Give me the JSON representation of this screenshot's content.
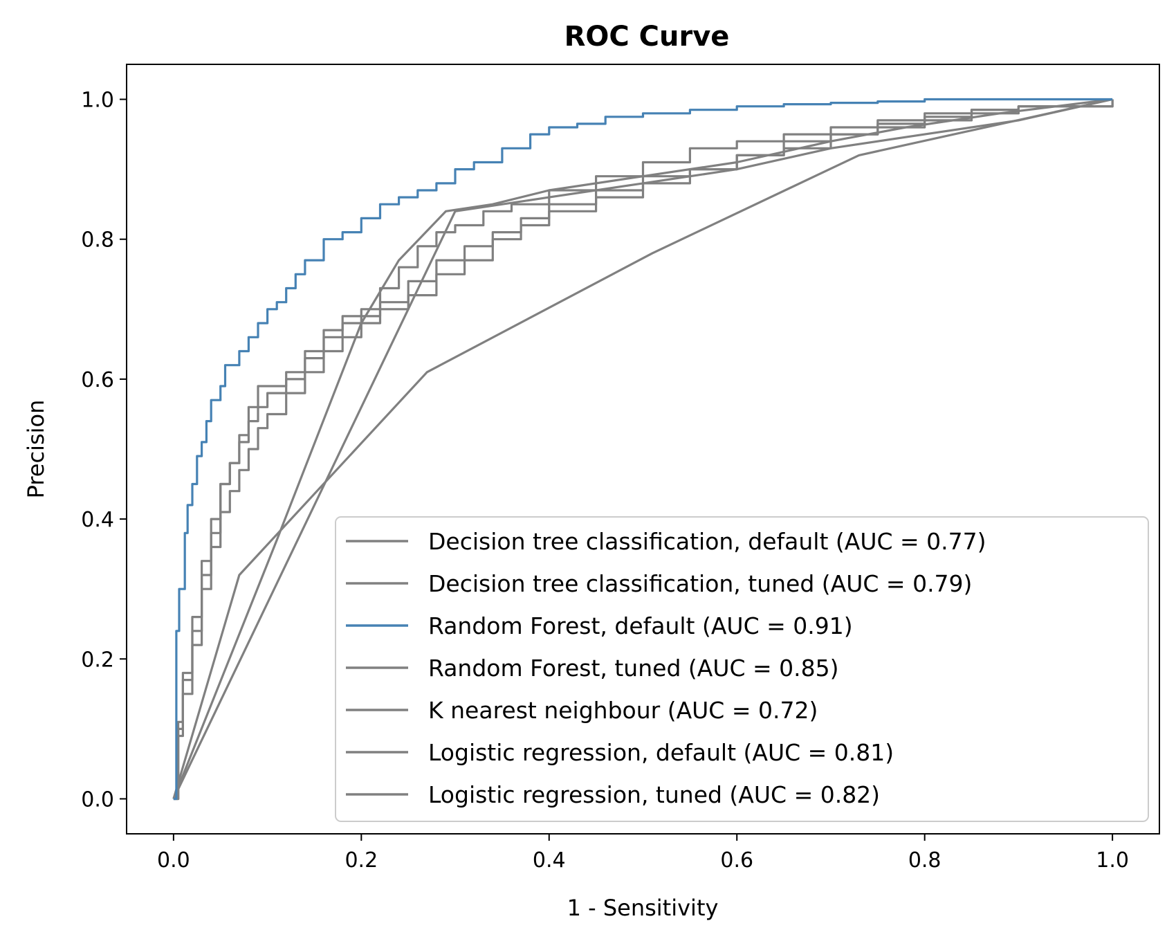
{
  "chart_data": {
    "type": "line",
    "title": "ROC Curve",
    "xlabel": "1 - Sensitivity",
    "ylabel": "Precision",
    "xlim": [
      -0.05,
      1.05
    ],
    "ylim": [
      -0.05,
      1.05
    ],
    "xticks": [
      "0.0",
      "0.2",
      "0.4",
      "0.6",
      "0.8",
      "1.0"
    ],
    "yticks": [
      "0.0",
      "0.2",
      "0.4",
      "0.6",
      "0.8",
      "1.0"
    ],
    "grid": false,
    "legend_position": "bottom-right",
    "colors": {
      "grey": "#808080",
      "blue": "#4682b4"
    },
    "series": [
      {
        "name": "Decision tree classification, default (AUC = 0.77)",
        "color": "#808080",
        "step": false,
        "x": [
          0,
          0.07,
          0.27,
          0.51,
          0.73,
          1.0
        ],
        "y": [
          0,
          0.32,
          0.61,
          0.78,
          0.92,
          1.0
        ]
      },
      {
        "name": "Decision tree classification, tuned (AUC = 0.79)",
        "color": "#808080",
        "step": false,
        "x": [
          0,
          0.11,
          0.2,
          0.24,
          0.29,
          0.34,
          0.4,
          0.5,
          0.6,
          0.7,
          0.78,
          0.88,
          1.0
        ],
        "y": [
          0,
          0.37,
          0.68,
          0.77,
          0.84,
          0.85,
          0.87,
          0.89,
          0.91,
          0.94,
          0.96,
          0.98,
          1.0
        ]
      },
      {
        "name": "Random Forest, default (AUC = 0.91)",
        "color": "#4682b4",
        "step": true,
        "x": [
          0,
          0.003,
          0.006,
          0.012,
          0.015,
          0.02,
          0.025,
          0.03,
          0.035,
          0.04,
          0.05,
          0.055,
          0.07,
          0.08,
          0.09,
          0.1,
          0.11,
          0.12,
          0.13,
          0.14,
          0.16,
          0.18,
          0.2,
          0.22,
          0.24,
          0.26,
          0.28,
          0.3,
          0.32,
          0.35,
          0.38,
          0.4,
          0.43,
          0.46,
          0.5,
          0.55,
          0.6,
          0.65,
          0.7,
          0.75,
          0.8,
          0.9,
          1.0
        ],
        "y": [
          0,
          0.24,
          0.3,
          0.38,
          0.42,
          0.45,
          0.49,
          0.51,
          0.54,
          0.57,
          0.59,
          0.62,
          0.64,
          0.66,
          0.68,
          0.7,
          0.71,
          0.73,
          0.75,
          0.77,
          0.8,
          0.81,
          0.83,
          0.85,
          0.86,
          0.87,
          0.88,
          0.9,
          0.91,
          0.93,
          0.95,
          0.96,
          0.965,
          0.975,
          0.98,
          0.985,
          0.99,
          0.993,
          0.995,
          0.997,
          1.0,
          1.0,
          1.0
        ]
      },
      {
        "name": "Random Forest, tuned (AUC = 0.85)",
        "color": "#808080",
        "step": true,
        "x": [
          0,
          0.005,
          0.01,
          0.02,
          0.03,
          0.04,
          0.05,
          0.06,
          0.07,
          0.08,
          0.09,
          0.1,
          0.12,
          0.14,
          0.16,
          0.18,
          0.2,
          0.22,
          0.24,
          0.26,
          0.28,
          0.3,
          0.33,
          0.36,
          0.4,
          0.45,
          0.5,
          0.55,
          0.6,
          0.65,
          0.7,
          0.75,
          0.8,
          0.85,
          0.9,
          1.0
        ],
        "y": [
          0,
          0.1,
          0.17,
          0.24,
          0.32,
          0.38,
          0.45,
          0.48,
          0.52,
          0.56,
          0.59,
          0.59,
          0.61,
          0.64,
          0.67,
          0.69,
          0.7,
          0.73,
          0.76,
          0.79,
          0.81,
          0.82,
          0.84,
          0.85,
          0.87,
          0.89,
          0.91,
          0.93,
          0.94,
          0.95,
          0.96,
          0.97,
          0.98,
          0.985,
          0.99,
          1.0
        ]
      },
      {
        "name": "K nearest neighbour (AUC = 0.72)",
        "color": "#808080",
        "step": false,
        "x": [
          0,
          0.15,
          0.3,
          0.4,
          0.5,
          0.6,
          0.7,
          0.8,
          0.9,
          1.0
        ],
        "y": [
          0,
          0.42,
          0.84,
          0.86,
          0.88,
          0.9,
          0.93,
          0.95,
          0.97,
          1.0
        ]
      },
      {
        "name": "Logistic regression, default (AUC = 0.81)",
        "color": "#808080",
        "step": true,
        "x": [
          0,
          0.005,
          0.01,
          0.02,
          0.03,
          0.04,
          0.05,
          0.06,
          0.07,
          0.08,
          0.09,
          0.1,
          0.12,
          0.14,
          0.16,
          0.18,
          0.2,
          0.22,
          0.25,
          0.28,
          0.31,
          0.34,
          0.37,
          0.4,
          0.45,
          0.5,
          0.55,
          0.6,
          0.65,
          0.7,
          0.75,
          0.8,
          0.85,
          0.9,
          1.0
        ],
        "y": [
          0,
          0.09,
          0.15,
          0.22,
          0.3,
          0.36,
          0.41,
          0.44,
          0.47,
          0.5,
          0.53,
          0.55,
          0.58,
          0.61,
          0.64,
          0.66,
          0.68,
          0.7,
          0.72,
          0.75,
          0.77,
          0.8,
          0.82,
          0.84,
          0.86,
          0.88,
          0.9,
          0.92,
          0.93,
          0.95,
          0.96,
          0.97,
          0.98,
          0.99,
          1.0
        ]
      },
      {
        "name": "Logistic regression, tuned (AUC = 0.82)",
        "color": "#808080",
        "step": true,
        "x": [
          0,
          0.005,
          0.01,
          0.02,
          0.03,
          0.04,
          0.05,
          0.06,
          0.07,
          0.08,
          0.09,
          0.1,
          0.12,
          0.14,
          0.16,
          0.18,
          0.2,
          0.22,
          0.25,
          0.28,
          0.31,
          0.34,
          0.37,
          0.4,
          0.45,
          0.5,
          0.55,
          0.6,
          0.65,
          0.7,
          0.75,
          0.8,
          0.85,
          0.9,
          1.0
        ],
        "y": [
          0,
          0.11,
          0.18,
          0.26,
          0.34,
          0.4,
          0.45,
          0.48,
          0.51,
          0.54,
          0.56,
          0.58,
          0.6,
          0.63,
          0.66,
          0.68,
          0.69,
          0.71,
          0.74,
          0.77,
          0.79,
          0.81,
          0.83,
          0.85,
          0.87,
          0.89,
          0.9,
          0.92,
          0.94,
          0.95,
          0.965,
          0.975,
          0.985,
          0.99,
          1.0
        ]
      }
    ]
  }
}
